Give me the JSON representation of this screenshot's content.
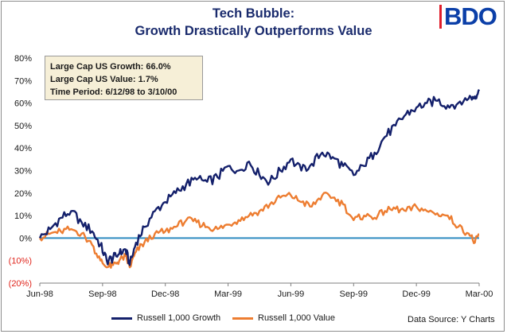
{
  "brand": {
    "logo_text": "BDO"
  },
  "title": {
    "line1": "Tech Bubble:",
    "line2": "Growth Drastically Outperforms Value"
  },
  "info_box": {
    "line1": "Large Cap US Growth: 66.0%",
    "line2": "Large Cap US Value: 1.7%",
    "line3": "Time Period: 6/12/98 to 3/10/00"
  },
  "source": "Data Source: Y Charts",
  "colors": {
    "growth": "#14206b",
    "value": "#ed7d31",
    "zero_line": "#2e8bc0",
    "negative_tick": "#e0241b",
    "title": "#1a2b6d"
  },
  "chart_data": {
    "type": "line",
    "title": "Tech Bubble: Growth Drastically Outperforms Value",
    "xlabel": "",
    "ylabel": "",
    "ylim": [
      -20,
      80
    ],
    "y_ticks": [
      {
        "value": 80,
        "label": "80%"
      },
      {
        "value": 70,
        "label": "70%"
      },
      {
        "value": 60,
        "label": "60%"
      },
      {
        "value": 50,
        "label": "50%"
      },
      {
        "value": 40,
        "label": "40%"
      },
      {
        "value": 30,
        "label": "30%"
      },
      {
        "value": 20,
        "label": "20%"
      },
      {
        "value": 10,
        "label": "10%"
      },
      {
        "value": 0,
        "label": "0%"
      },
      {
        "value": -10,
        "label": "(10%)"
      },
      {
        "value": -20,
        "label": "(20%)"
      }
    ],
    "x_range": [
      0,
      21
    ],
    "x_ticks": [
      {
        "value": 0,
        "label": "Jun-98"
      },
      {
        "value": 3,
        "label": "Sep-98"
      },
      {
        "value": 6,
        "label": "Dec-98"
      },
      {
        "value": 9,
        "label": "Mar-99"
      },
      {
        "value": 12,
        "label": "Jun-99"
      },
      {
        "value": 15,
        "label": "Sep-99"
      },
      {
        "value": 18,
        "label": "Dec-99"
      },
      {
        "value": 21,
        "label": "Mar-00"
      }
    ],
    "grid": false,
    "legend_position": "bottom",
    "x": [
      0,
      0.5,
      1,
      1.5,
      2,
      2.5,
      2.9,
      3.2,
      3.5,
      3.8,
      4.1,
      4.3,
      4.6,
      5,
      5.5,
      6,
      6.5,
      7,
      7.5,
      8,
      8.5,
      9,
      9.5,
      10,
      10.5,
      11,
      11.5,
      12,
      12.5,
      13,
      13.5,
      14,
      14.5,
      15,
      15.5,
      16,
      16.5,
      17,
      17.5,
      18,
      18.5,
      19,
      19.5,
      20,
      20.5,
      20.8,
      21
    ],
    "series": [
      {
        "name": "Russell 1,000 Growth",
        "values": [
          0,
          4,
          9,
          12,
          7,
          3,
          -3,
          -10,
          -9,
          -7,
          -5,
          -12,
          -2,
          5,
          12,
          16,
          20,
          24,
          26,
          25,
          27,
          32,
          30,
          34,
          28,
          25,
          30,
          35,
          30,
          33,
          38,
          36,
          32,
          28,
          32,
          38,
          45,
          50,
          55,
          58,
          60,
          61,
          59,
          60,
          62,
          63,
          66
        ]
      },
      {
        "name": "Russell 1,000 Value",
        "values": [
          0,
          2,
          3,
          4,
          2,
          -3,
          -10,
          -13,
          -12,
          -10,
          -8,
          -13,
          -6,
          -2,
          2,
          3,
          5,
          8,
          7,
          5,
          4,
          6,
          8,
          10,
          12,
          15,
          18,
          19,
          16,
          14,
          19,
          18,
          15,
          8,
          10,
          9,
          12,
          13,
          12,
          14,
          12,
          11,
          10,
          5,
          2,
          -2,
          1.7
        ]
      }
    ]
  }
}
